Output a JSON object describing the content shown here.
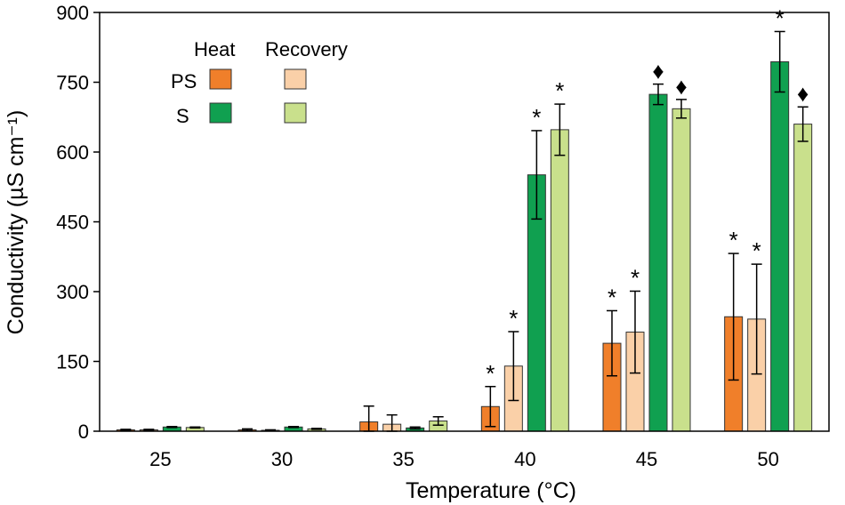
{
  "chart_data": {
    "type": "bar",
    "xlabel": "Temperature (°C)",
    "ylabel": "Conductivity (µS cm⁻¹)",
    "ylim": [
      0,
      900
    ],
    "yticks": [
      "0",
      "150",
      "300",
      "450",
      "600",
      "750",
      "900"
    ],
    "categories": [
      "25",
      "30",
      "35",
      "40",
      "45",
      "50"
    ],
    "legend": {
      "placement": "top-left",
      "column_headers": [
        "Heat",
        "Recovery"
      ],
      "row_headers": [
        "PS",
        "S"
      ]
    },
    "series": [
      {
        "name": "PS Heat",
        "color": "#F07F2A",
        "values": [
          3,
          3,
          20,
          53,
          189,
          246
        ],
        "errors": [
          1,
          2,
          34,
          43,
          70,
          136
        ],
        "marks": [
          "",
          "",
          "",
          "*",
          "*",
          "*"
        ]
      },
      {
        "name": "PS Recovery",
        "color": "#FAD0A8",
        "values": [
          3,
          2,
          15,
          140,
          213,
          241
        ],
        "errors": [
          1,
          1,
          20,
          74,
          88,
          118
        ],
        "marks": [
          "",
          "",
          "",
          "*",
          "*",
          "*"
        ]
      },
      {
        "name": "S Heat",
        "color": "#10A050",
        "values": [
          9,
          9,
          7,
          551,
          724,
          794
        ],
        "errors": [
          1,
          1,
          2,
          95,
          22,
          65
        ],
        "marks": [
          "",
          "",
          "",
          "*",
          "♦",
          "*"
        ]
      },
      {
        "name": "S Recovery",
        "color": "#C9E08C",
        "values": [
          8,
          5,
          22,
          648,
          693,
          660
        ],
        "errors": [
          1,
          1,
          9,
          55,
          20,
          37
        ],
        "marks": [
          "",
          "",
          "",
          "*",
          "♦",
          "♦"
        ]
      }
    ]
  }
}
